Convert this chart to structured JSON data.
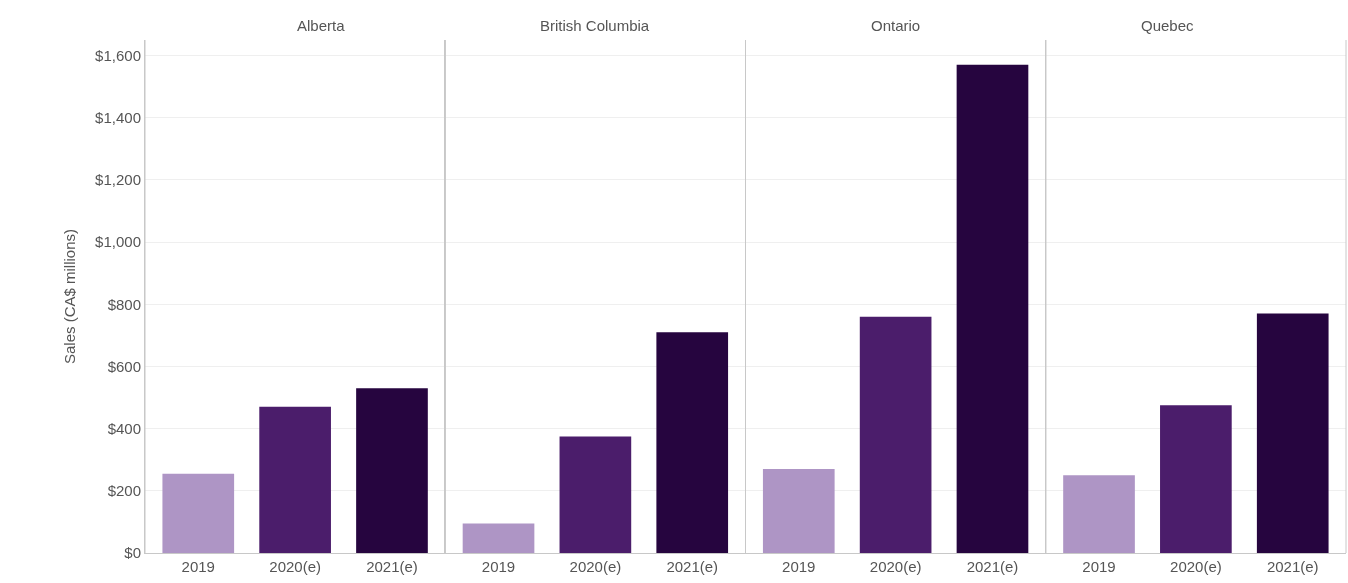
{
  "chart_data": [
    {
      "type": "bar",
      "title": "Alberta",
      "ylabel": "Sales (CA$ millions)",
      "categories": [
        "2019",
        "2020(e)",
        "2021(e)"
      ],
      "values": [
        255,
        470,
        530
      ],
      "colors": [
        "#ae95c5",
        "#4b1d6b",
        "#26053f"
      ],
      "ylim": [
        0,
        1650
      ],
      "yticks": [
        {
          "value": 0,
          "label": "$0"
        },
        {
          "value": 200,
          "label": "$200"
        },
        {
          "value": 400,
          "label": "$400"
        },
        {
          "value": 600,
          "label": "$600"
        },
        {
          "value": 800,
          "label": "$800"
        },
        {
          "value": 1000,
          "label": "$1,000"
        },
        {
          "value": 1200,
          "label": "$1,200"
        },
        {
          "value": 1400,
          "label": "$1,400"
        },
        {
          "value": 1600,
          "label": "$1,600"
        }
      ],
      "grid": "y"
    },
    {
      "type": "bar",
      "title": "British Columbia",
      "categories": [
        "2019",
        "2020(e)",
        "2021(e)"
      ],
      "values": [
        95,
        375,
        710
      ],
      "colors": [
        "#ae95c5",
        "#4b1d6b",
        "#26053f"
      ],
      "ylim": [
        0,
        1650
      ],
      "yticks": [
        0,
        200,
        400,
        600,
        800,
        1000,
        1200,
        1400,
        1600
      ],
      "grid": "y",
      "tick_labels": "x"
    },
    {
      "type": "bar",
      "title": "Ontario",
      "categories": [
        "2019",
        "2020(e)",
        "2021(e)"
      ],
      "values": [
        270,
        760,
        1570
      ],
      "colors": [
        "#ae95c5",
        "#4b1d6b",
        "#26053f"
      ],
      "ylim": [
        0,
        1650
      ],
      "yticks": [
        0,
        200,
        400,
        600,
        800,
        1000,
        1200,
        1400,
        1600
      ],
      "grid": "y",
      "tick_labels": "x"
    },
    {
      "type": "bar",
      "title": "Quebec",
      "categories": [
        "2019",
        "2020(e)",
        "2021(e)"
      ],
      "values": [
        250,
        475,
        770
      ],
      "colors": [
        "#ae95c5",
        "#4b1d6b",
        "#26053f"
      ],
      "ylim": [
        0,
        1650
      ],
      "yticks": [
        0,
        200,
        400,
        600,
        800,
        1000,
        1200,
        1400,
        1600
      ],
      "grid": "y",
      "tick_labels": "x"
    }
  ]
}
